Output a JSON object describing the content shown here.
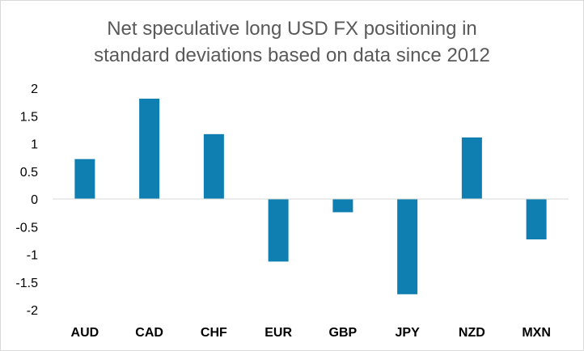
{
  "chart_data": {
    "type": "bar",
    "title_lines": [
      "Net speculative long USD FX positioning in",
      "standard deviations based on data since 2012"
    ],
    "categories": [
      "AUD",
      "CAD",
      "CHF",
      "EUR",
      "GBP",
      "JPY",
      "NZD",
      "MXN"
    ],
    "values": [
      0.72,
      1.81,
      1.17,
      -1.13,
      -0.24,
      -1.72,
      1.11,
      -0.73
    ],
    "y_ticks": [
      "2",
      "1.5",
      "1",
      "0.5",
      "0",
      "-0.5",
      "-1",
      "-1.5",
      "-2"
    ],
    "ylim": [
      -2,
      2
    ],
    "xlabel": "",
    "ylabel": "",
    "grid": false,
    "legend": "none",
    "bar_color": "#0e7fb0",
    "axis_color": "#d9d9d9"
  }
}
